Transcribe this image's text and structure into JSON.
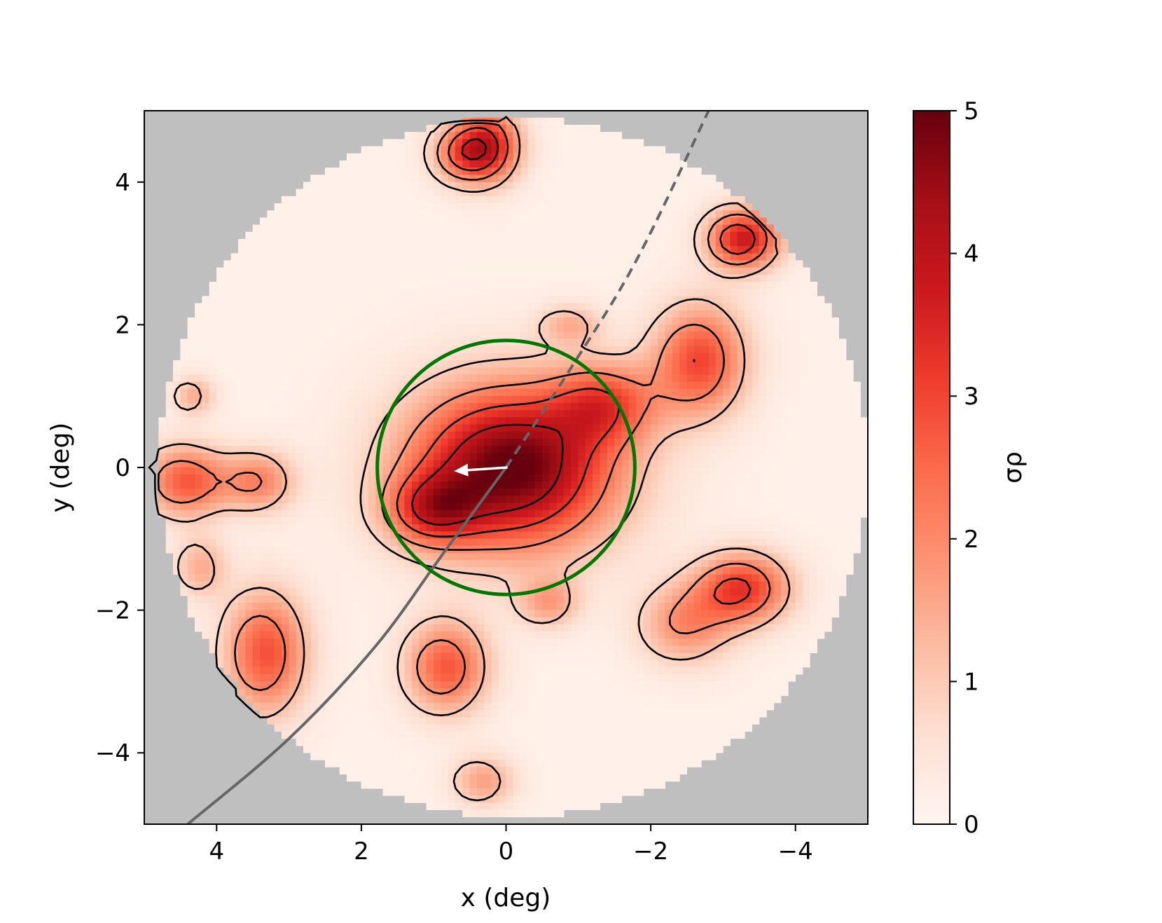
{
  "chart_data": {
    "type": "heatmap",
    "title": "",
    "xlabel": "x (deg)",
    "ylabel": "y (deg)",
    "xlim": [
      5,
      -5
    ],
    "ylim": [
      -5,
      5
    ],
    "x_ticks": [
      4,
      2,
      0,
      -2,
      -4
    ],
    "y_ticks": [
      4,
      2,
      0,
      -2,
      -4
    ],
    "x_tick_labels": [
      "4",
      "2",
      "0",
      "−2",
      "−4"
    ],
    "y_tick_labels": [
      "4",
      "2",
      "0",
      "−2",
      "−4"
    ],
    "colorbar": {
      "label": "σρ",
      "range": [
        0,
        5
      ],
      "ticks": [
        0,
        1,
        2,
        3,
        4,
        5
      ],
      "tick_labels": [
        "0",
        "1",
        "2",
        "3",
        "4",
        "5"
      ],
      "colormap": "Reds"
    },
    "grid": false,
    "footprint_radius_deg": 4.9,
    "background_color": "#bfbfbf",
    "contour_levels": [
      1,
      2,
      3,
      4
    ],
    "overdensities": [
      {
        "x": 0.0,
        "y": 0.0,
        "peak": 5.0,
        "sx": 1.0,
        "sy": 0.8
      },
      {
        "x": 1.1,
        "y": -0.6,
        "peak": 2.4,
        "sx": 0.45,
        "sy": 0.35
      },
      {
        "x": -1.3,
        "y": 0.9,
        "peak": 2.2,
        "sx": 0.5,
        "sy": 0.4
      },
      {
        "x": 0.7,
        "y": 4.4,
        "peak": 2.2,
        "sx": 0.3,
        "sy": 0.3
      },
      {
        "x": 0.3,
        "y": 4.5,
        "peak": 3.1,
        "sx": 0.3,
        "sy": 0.35
      },
      {
        "x": -3.2,
        "y": 3.2,
        "peak": 3.6,
        "sx": 0.35,
        "sy": 0.3
      },
      {
        "x": -2.6,
        "y": 1.5,
        "peak": 2.8,
        "sx": 0.45,
        "sy": 0.55
      },
      {
        "x": 4.5,
        "y": -0.2,
        "peak": 2.6,
        "sx": 0.4,
        "sy": 0.35
      },
      {
        "x": 3.5,
        "y": -0.2,
        "peak": 1.9,
        "sx": 0.35,
        "sy": 0.3
      },
      {
        "x": 3.4,
        "y": -2.6,
        "peak": 2.7,
        "sx": 0.4,
        "sy": 0.6
      },
      {
        "x": 0.9,
        "y": -2.8,
        "peak": 2.6,
        "sx": 0.4,
        "sy": 0.45
      },
      {
        "x": -3.2,
        "y": -1.7,
        "peak": 3.0,
        "sx": 0.45,
        "sy": 0.35
      },
      {
        "x": -2.4,
        "y": -2.2,
        "peak": 1.8,
        "sx": 0.45,
        "sy": 0.4
      },
      {
        "x": -0.5,
        "y": -1.9,
        "peak": 1.4,
        "sx": 0.3,
        "sy": 0.25
      },
      {
        "x": 0.4,
        "y": -4.4,
        "peak": 1.5,
        "sx": 0.3,
        "sy": 0.25
      },
      {
        "x": 4.3,
        "y": -1.4,
        "peak": 1.3,
        "sx": 0.25,
        "sy": 0.3
      },
      {
        "x": 4.4,
        "y": 1.0,
        "peak": 1.3,
        "sx": 0.2,
        "sy": 0.2
      },
      {
        "x": -0.8,
        "y": 2.0,
        "peak": 1.2,
        "sx": 0.3,
        "sy": 0.2
      }
    ],
    "annotations": {
      "circle": {
        "center": [
          0,
          0
        ],
        "radius_deg": 1.78,
        "color": "#007800"
      },
      "orbit": {
        "color": "#666666",
        "solid_points": [
          [
            4.4,
            -5.0
          ],
          [
            3.0,
            -3.8
          ],
          [
            1.8,
            -2.5
          ],
          [
            0.9,
            -1.25
          ],
          [
            0.0,
            0.0
          ]
        ],
        "dashed_points": [
          [
            0.0,
            0.0
          ],
          [
            -0.9,
            1.4
          ],
          [
            -1.8,
            2.9
          ],
          [
            -2.8,
            5.0
          ]
        ]
      },
      "proper_motion_arrow": {
        "from": [
          -0.02,
          0.0
        ],
        "to": [
          0.72,
          -0.05
        ],
        "color": "#ffffff"
      }
    }
  }
}
